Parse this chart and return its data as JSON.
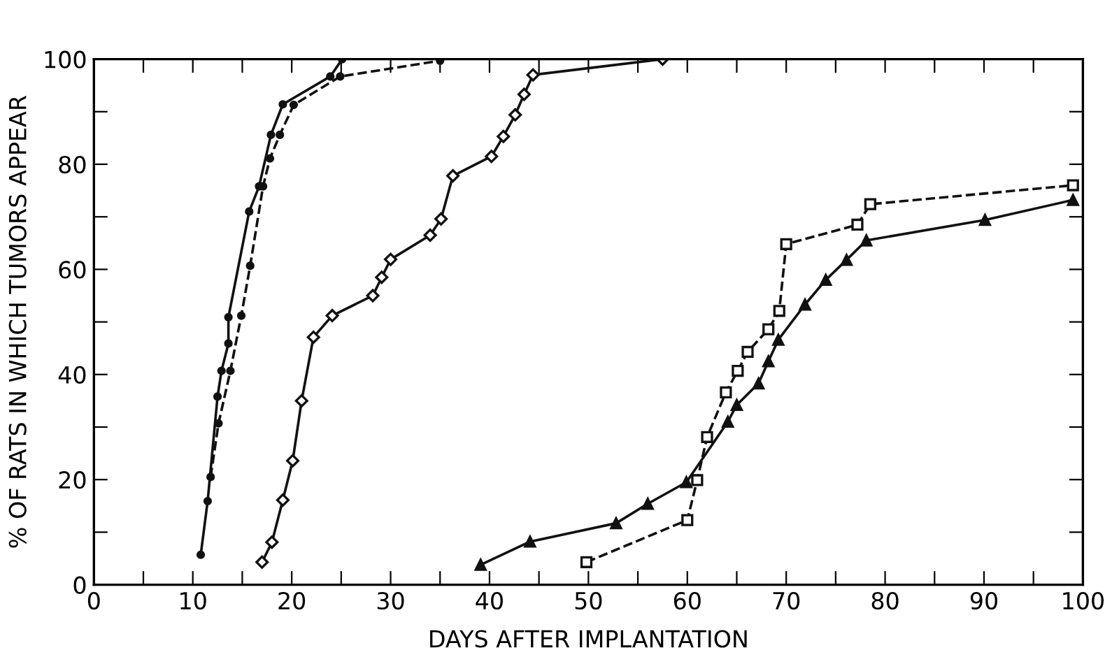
{
  "chart_data": {
    "type": "line",
    "xlabel": "DAYS AFTER IMPLANTATION",
    "ylabel": "% OF RATS IN WHICH TUMORS APPEAR",
    "xlim": [
      0,
      100
    ],
    "ylim": [
      0,
      100
    ],
    "xticks": [
      0,
      {
        "value": 5,
        "label": null
      },
      10,
      {
        "value": 15,
        "label": null
      },
      20,
      {
        "value": 25,
        "label": null
      },
      30,
      {
        "value": 35,
        "label": null
      },
      40,
      {
        "value": 45,
        "label": null
      },
      50,
      {
        "value": 55,
        "label": null
      },
      60,
      {
        "value": 65,
        "label": null
      },
      70,
      {
        "value": 75,
        "label": null
      },
      80,
      {
        "value": 85,
        "label": null
      },
      90,
      {
        "value": 95,
        "label": null
      },
      100
    ],
    "yticks": [
      0,
      {
        "value": 10,
        "label": null
      },
      20,
      {
        "value": 30,
        "label": null
      },
      40,
      {
        "value": 50,
        "label": null
      },
      60,
      {
        "value": 70,
        "label": null
      },
      80,
      {
        "value": 90,
        "label": null
      },
      100
    ],
    "grid": false,
    "legend": false,
    "series": [
      {
        "color": "#111111",
        "marker": "circle",
        "line_style": "solid",
        "x": [
          10.8,
          11.5,
          12.5,
          12.9,
          13.6,
          13.6,
          15.7,
          16.7,
          17.9,
          19.1,
          23.9,
          25.1
        ],
        "values": [
          5.7,
          15.9,
          35.8,
          40.7,
          45.9,
          50.9,
          71.0,
          75.8,
          85.6,
          91.4,
          96.7,
          100
        ]
      },
      {
        "color": "#111111",
        "marker": "circle",
        "line_style": "dashed",
        "x": [
          11.8,
          12.6,
          13.8,
          14.9,
          15.8,
          17.1,
          17.8,
          18.8,
          20.2,
          24.9,
          35.0
        ],
        "values": [
          20.5,
          30.7,
          40.7,
          51.2,
          60.7,
          75.8,
          81.1,
          85.6,
          91.3,
          96.7,
          99.7
        ]
      },
      {
        "color": "#111111",
        "marker": "diamond",
        "line_style": "solid",
        "x": [
          17.0,
          18.0,
          19.1,
          20.1,
          21.0,
          22.2,
          24.1,
          28.2,
          29.1,
          30.0,
          34.0,
          35.1,
          36.3,
          40.2,
          41.4,
          42.6,
          43.5,
          44.4,
          57.5
        ],
        "values": [
          4.3,
          8.1,
          16.1,
          23.6,
          35.0,
          47.1,
          51.2,
          55.0,
          58.5,
          61.9,
          66.5,
          69.6,
          77.8,
          81.5,
          85.3,
          89.4,
          93.3,
          97.0,
          100
        ]
      },
      {
        "color": "#111111",
        "marker": "triangle",
        "line_style": "solid",
        "x": [
          39.1,
          44.1,
          52.8,
          56.0,
          59.9,
          64.1,
          65.0,
          67.2,
          68.2,
          69.2,
          71.9,
          74.0,
          76.1,
          78.1,
          90.1,
          99.0
        ],
        "values": [
          3.8,
          8.2,
          11.7,
          15.4,
          19.5,
          31.0,
          34.2,
          38.3,
          42.5,
          46.6,
          53.3,
          58.0,
          61.8,
          65.5,
          69.4,
          73.2
        ]
      },
      {
        "color": "#111111",
        "marker": "square",
        "line_style": "dashed",
        "x": [
          49.8,
          60.0,
          61.0,
          62.0,
          63.9,
          65.1,
          66.1,
          68.2,
          69.3,
          70.0,
          77.2,
          78.5,
          99.0
        ],
        "values": [
          4.3,
          12.3,
          19.9,
          28.1,
          36.6,
          40.7,
          44.3,
          48.6,
          52.1,
          64.8,
          68.5,
          72.4,
          76.0
        ]
      }
    ]
  }
}
